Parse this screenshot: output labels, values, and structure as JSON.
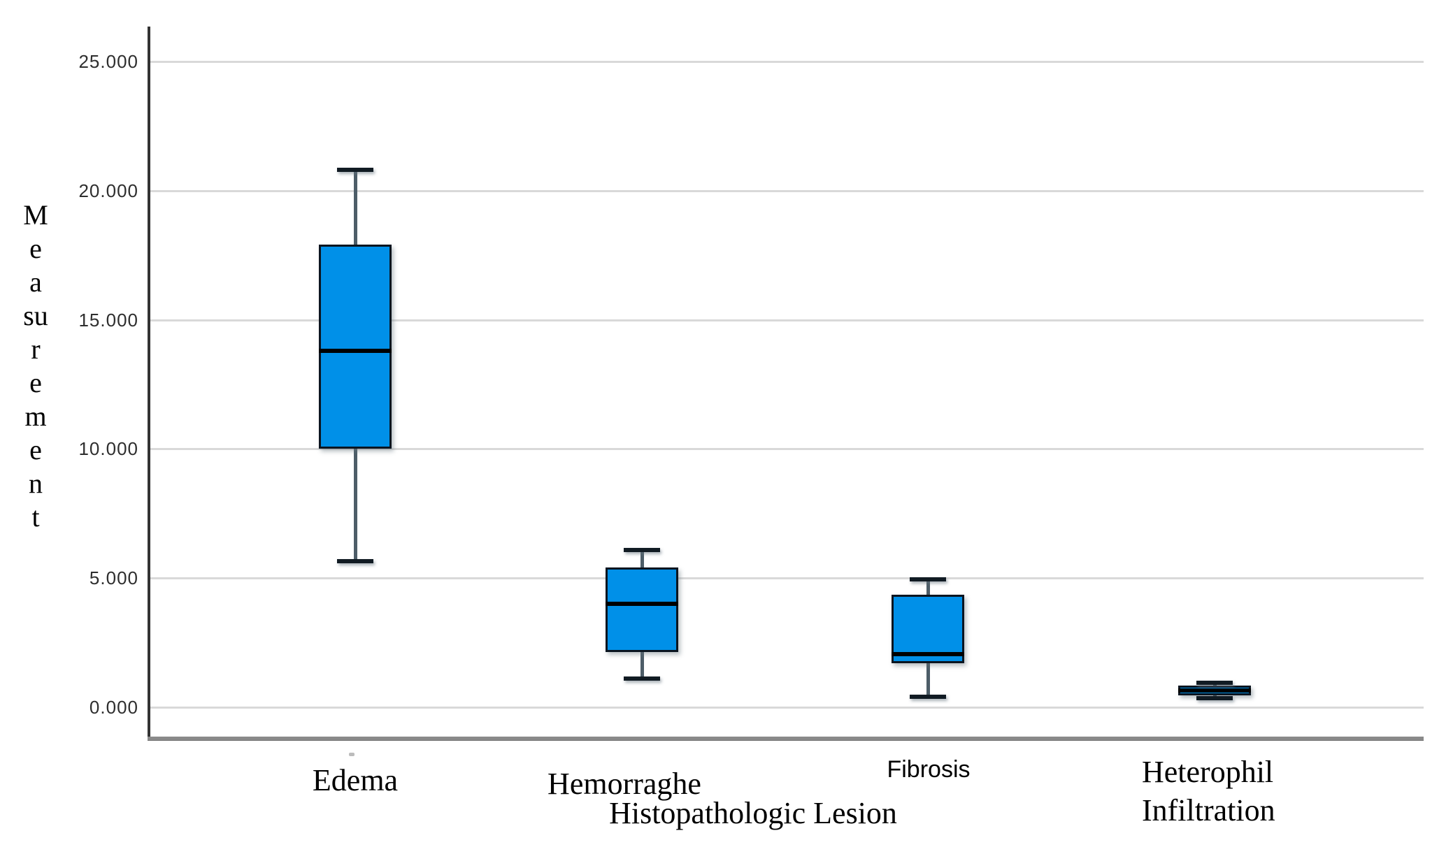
{
  "chart_data": {
    "type": "box",
    "title": "",
    "xlabel": "Histopathologic Lesion",
    "ylabel": "Measurement",
    "ylabel_stacked": "M\ne\na\nsu\nr\ne\nm\ne\nn\nt",
    "ylim": [
      -1.2,
      26.4
    ],
    "grid": "horizontal",
    "legend": "none",
    "yticks": [
      {
        "label": "25.000",
        "value": 25
      },
      {
        "label": "20.000",
        "value": 20
      },
      {
        "label": "15.000",
        "value": 15
      },
      {
        "label": "10.000",
        "value": 10
      },
      {
        "label": "5.000",
        "value": 5
      },
      {
        "label": "0.000",
        "value": 0
      }
    ],
    "categories": [
      "Edema",
      "Hemorraghe",
      "Fibrosis",
      "Heterophil Infiltration"
    ],
    "boxes": [
      {
        "category": "Edema",
        "display_label": "Edema",
        "whisker_low": 5.65,
        "q1": 10.0,
        "median": 13.8,
        "q3": 17.9,
        "whisker_high": 20.8
      },
      {
        "category": "Hemorraghe",
        "display_label": "Hemorraghe",
        "whisker_low": 1.1,
        "q1": 2.15,
        "median": 4.0,
        "q3": 5.4,
        "whisker_high": 6.1
      },
      {
        "category": "Fibrosis",
        "display_label": "Fibrosis",
        "whisker_low": 0.4,
        "q1": 1.7,
        "median": 2.05,
        "q3": 4.35,
        "whisker_high": 4.95
      },
      {
        "category": "Heterophil Infiltration",
        "display_label": "Heterophil\nInfiltration",
        "whisker_low": 0.35,
        "q1": 0.45,
        "median": 0.65,
        "q3": 0.85,
        "whisker_high": 0.95
      }
    ],
    "colors": {
      "box_fill": "#0090e8",
      "box_border": "#0b1520",
      "median_line": "#000000",
      "whisker_line": "#4d5d68",
      "whisker_cap": "#111b23",
      "gridline": "#d9d9d9",
      "y_axis_line": "#333333",
      "baseline": "#8a8a8a",
      "text": "#000000"
    }
  }
}
